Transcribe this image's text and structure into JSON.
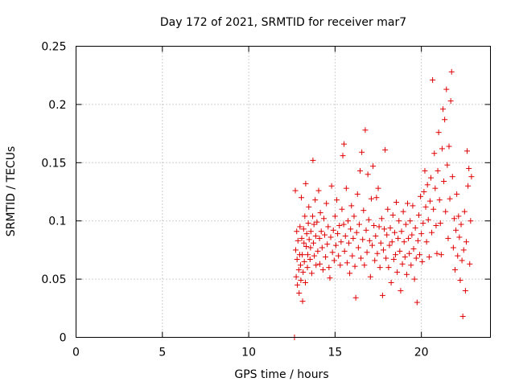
{
  "chart_data": {
    "type": "scatter",
    "title": "Day 172 of 2021, SRMTID for receiver mar7",
    "xlabel": "GPS time / hours",
    "ylabel": "SRMTID / TECUs",
    "xlim": [
      0,
      24
    ],
    "ylim": [
      0,
      0.25
    ],
    "xticks": [
      0,
      5,
      10,
      15,
      20
    ],
    "xtick_labels": [
      "0",
      "5",
      "10",
      "15",
      "20"
    ],
    "yticks": [
      0,
      0.05,
      0.1,
      0.15,
      0.2,
      0.25
    ],
    "ytick_labels": [
      "0",
      "0.05",
      "0.1",
      "0.15",
      "0.2",
      "0.25"
    ],
    "grid": true,
    "marker": "+",
    "color": "#e00000",
    "series": [
      {
        "name": "SRMTID",
        "points": [
          [
            12.65,
            0.0
          ],
          [
            12.7,
            0.126
          ],
          [
            12.72,
            0.075
          ],
          [
            12.75,
            0.052
          ],
          [
            12.78,
            0.091
          ],
          [
            12.8,
            0.067
          ],
          [
            12.82,
            0.045
          ],
          [
            12.85,
            0.083
          ],
          [
            12.9,
            0.058
          ],
          [
            12.92,
            0.038
          ],
          [
            12.95,
            0.071
          ],
          [
            12.97,
            0.095
          ],
          [
            13.0,
            0.062
          ],
          [
            13.02,
            0.049
          ],
          [
            13.05,
            0.12
          ],
          [
            13.07,
            0.085
          ],
          [
            13.1,
            0.071
          ],
          [
            13.12,
            0.031
          ],
          [
            13.15,
            0.056
          ],
          [
            13.18,
            0.093
          ],
          [
            13.2,
            0.081
          ],
          [
            13.22,
            0.065
          ],
          [
            13.25,
            0.104
          ],
          [
            13.28,
            0.047
          ],
          [
            13.3,
            0.132
          ],
          [
            13.33,
            0.078
          ],
          [
            13.36,
            0.089
          ],
          [
            13.4,
            0.06
          ],
          [
            13.42,
            0.071
          ],
          [
            13.45,
            0.098
          ],
          [
            13.48,
            0.112
          ],
          [
            13.5,
            0.084
          ],
          [
            13.55,
            0.067
          ],
          [
            13.58,
            0.077
          ],
          [
            13.6,
            0.091
          ],
          [
            13.65,
            0.055
          ],
          [
            13.7,
            0.104
          ],
          [
            13.72,
            0.152
          ],
          [
            13.75,
            0.081
          ],
          [
            13.78,
            0.097
          ],
          [
            13.8,
            0.07
          ],
          [
            13.85,
            0.118
          ],
          [
            13.88,
            0.087
          ],
          [
            13.9,
            0.062
          ],
          [
            13.95,
            0.099
          ],
          [
            14.0,
            0.074
          ],
          [
            14.05,
            0.126
          ],
          [
            14.1,
            0.085
          ],
          [
            14.12,
            0.063
          ],
          [
            14.15,
            0.107
          ],
          [
            14.2,
            0.091
          ],
          [
            14.25,
            0.077
          ],
          [
            14.3,
            0.058
          ],
          [
            14.35,
            0.102
          ],
          [
            14.4,
            0.088
          ],
          [
            14.45,
            0.069
          ],
          [
            14.5,
            0.115
          ],
          [
            14.55,
            0.08
          ],
          [
            14.6,
            0.095
          ],
          [
            14.65,
            0.06
          ],
          [
            14.7,
            0.051
          ],
          [
            14.75,
            0.086
          ],
          [
            14.8,
            0.13
          ],
          [
            14.85,
            0.073
          ],
          [
            14.9,
            0.092
          ],
          [
            14.95,
            0.066
          ],
          [
            15.0,
            0.104
          ],
          [
            15.05,
            0.079
          ],
          [
            15.1,
            0.118
          ],
          [
            15.15,
            0.089
          ],
          [
            15.2,
            0.07
          ],
          [
            15.25,
            0.096
          ],
          [
            15.3,
            0.062
          ],
          [
            15.35,
            0.082
          ],
          [
            15.4,
            0.11
          ],
          [
            15.45,
            0.156
          ],
          [
            15.5,
            0.097
          ],
          [
            15.52,
            0.166
          ],
          [
            15.55,
            0.074
          ],
          [
            15.6,
            0.087
          ],
          [
            15.65,
            0.128
          ],
          [
            15.7,
            0.064
          ],
          [
            15.75,
            0.1
          ],
          [
            15.8,
            0.081
          ],
          [
            15.85,
            0.055
          ],
          [
            15.9,
            0.093
          ],
          [
            15.95,
            0.113
          ],
          [
            16.0,
            0.07
          ],
          [
            16.05,
            0.085
          ],
          [
            16.1,
            0.104
          ],
          [
            16.15,
            0.061
          ],
          [
            16.2,
            0.034
          ],
          [
            16.25,
            0.09
          ],
          [
            16.3,
            0.123
          ],
          [
            16.35,
            0.077
          ],
          [
            16.4,
            0.097
          ],
          [
            16.45,
            0.143
          ],
          [
            16.5,
            0.068
          ],
          [
            16.55,
            0.159
          ],
          [
            16.6,
            0.084
          ],
          [
            16.65,
            0.109
          ],
          [
            16.7,
            0.062
          ],
          [
            16.75,
            0.178
          ],
          [
            16.8,
            0.092
          ],
          [
            16.85,
            0.073
          ],
          [
            16.9,
            0.14
          ],
          [
            16.95,
            0.101
          ],
          [
            17.0,
            0.083
          ],
          [
            17.05,
            0.052
          ],
          [
            17.1,
            0.119
          ],
          [
            17.15,
            0.079
          ],
          [
            17.2,
            0.147
          ],
          [
            17.25,
            0.096
          ],
          [
            17.3,
            0.066
          ],
          [
            17.35,
            0.087
          ],
          [
            17.4,
            0.12
          ],
          [
            17.45,
            0.072
          ],
          [
            17.5,
            0.128
          ],
          [
            17.55,
            0.095
          ],
          [
            17.6,
            0.06
          ],
          [
            17.65,
            0.081
          ],
          [
            17.7,
            0.102
          ],
          [
            17.75,
            0.036
          ],
          [
            17.8,
            0.075
          ],
          [
            17.85,
            0.093
          ],
          [
            17.9,
            0.161
          ],
          [
            17.95,
            0.068
          ],
          [
            18.0,
            0.088
          ],
          [
            18.05,
            0.11
          ],
          [
            18.1,
            0.06
          ],
          [
            18.15,
            0.079
          ],
          [
            18.2,
            0.094
          ],
          [
            18.25,
            0.047
          ],
          [
            18.3,
            0.082
          ],
          [
            18.35,
            0.105
          ],
          [
            18.4,
            0.067
          ],
          [
            18.45,
            0.09
          ],
          [
            18.5,
            0.071
          ],
          [
            18.55,
            0.116
          ],
          [
            18.6,
            0.056
          ],
          [
            18.65,
            0.085
          ],
          [
            18.7,
            0.1
          ],
          [
            18.75,
            0.074
          ],
          [
            18.8,
            0.04
          ],
          [
            18.85,
            0.091
          ],
          [
            18.9,
            0.063
          ],
          [
            18.95,
            0.108
          ],
          [
            19.0,
            0.082
          ],
          [
            19.05,
            0.069
          ],
          [
            19.1,
            0.097
          ],
          [
            19.15,
            0.054
          ],
          [
            19.2,
            0.115
          ],
          [
            19.25,
            0.085
          ],
          [
            19.3,
            0.072
          ],
          [
            19.35,
            0.1
          ],
          [
            19.4,
            0.062
          ],
          [
            19.45,
            0.088
          ],
          [
            19.5,
            0.113
          ],
          [
            19.55,
            0.076
          ],
          [
            19.6,
            0.05
          ],
          [
            19.65,
            0.094
          ],
          [
            19.7,
            0.068
          ],
          [
            19.75,
            0.03
          ],
          [
            19.8,
            0.083
          ],
          [
            19.85,
            0.105
          ],
          [
            19.9,
            0.071
          ],
          [
            19.95,
            0.121
          ],
          [
            20.0,
            0.089
          ],
          [
            20.05,
            0.065
          ],
          [
            20.1,
            0.098
          ],
          [
            20.15,
            0.125
          ],
          [
            20.2,
            0.143
          ],
          [
            20.25,
            0.112
          ],
          [
            20.3,
            0.082
          ],
          [
            20.35,
            0.131
          ],
          [
            20.4,
            0.101
          ],
          [
            20.45,
            0.069
          ],
          [
            20.5,
            0.117
          ],
          [
            20.55,
            0.137
          ],
          [
            20.6,
            0.09
          ],
          [
            20.65,
            0.221
          ],
          [
            20.7,
            0.11
          ],
          [
            20.75,
            0.158
          ],
          [
            20.8,
            0.128
          ],
          [
            20.85,
            0.096
          ],
          [
            20.9,
            0.072
          ],
          [
            20.95,
            0.143
          ],
          [
            21.0,
            0.176
          ],
          [
            21.05,
            0.118
          ],
          [
            21.1,
            0.098
          ],
          [
            21.15,
            0.071
          ],
          [
            21.2,
            0.162
          ],
          [
            21.25,
            0.196
          ],
          [
            21.3,
            0.134
          ],
          [
            21.35,
            0.187
          ],
          [
            21.4,
            0.108
          ],
          [
            21.45,
            0.213
          ],
          [
            21.5,
            0.148
          ],
          [
            21.55,
            0.085
          ],
          [
            21.6,
            0.164
          ],
          [
            21.65,
            0.119
          ],
          [
            21.7,
            0.203
          ],
          [
            21.75,
            0.228
          ],
          [
            21.8,
            0.138
          ],
          [
            21.85,
            0.077
          ],
          [
            21.9,
            0.102
          ],
          [
            21.95,
            0.058
          ],
          [
            22.0,
            0.092
          ],
          [
            22.05,
            0.123
          ],
          [
            22.1,
            0.07
          ],
          [
            22.15,
            0.104
          ],
          [
            22.2,
            0.086
          ],
          [
            22.25,
            0.049
          ],
          [
            22.3,
            0.097
          ],
          [
            22.35,
            0.066
          ],
          [
            22.4,
            0.018
          ],
          [
            22.45,
            0.075
          ],
          [
            22.5,
            0.108
          ],
          [
            22.55,
            0.04
          ],
          [
            22.6,
            0.082
          ],
          [
            22.65,
            0.16
          ],
          [
            22.7,
            0.13
          ],
          [
            22.75,
            0.145
          ],
          [
            22.8,
            0.063
          ],
          [
            22.85,
            0.1
          ],
          [
            22.9,
            0.138
          ]
        ]
      }
    ]
  }
}
